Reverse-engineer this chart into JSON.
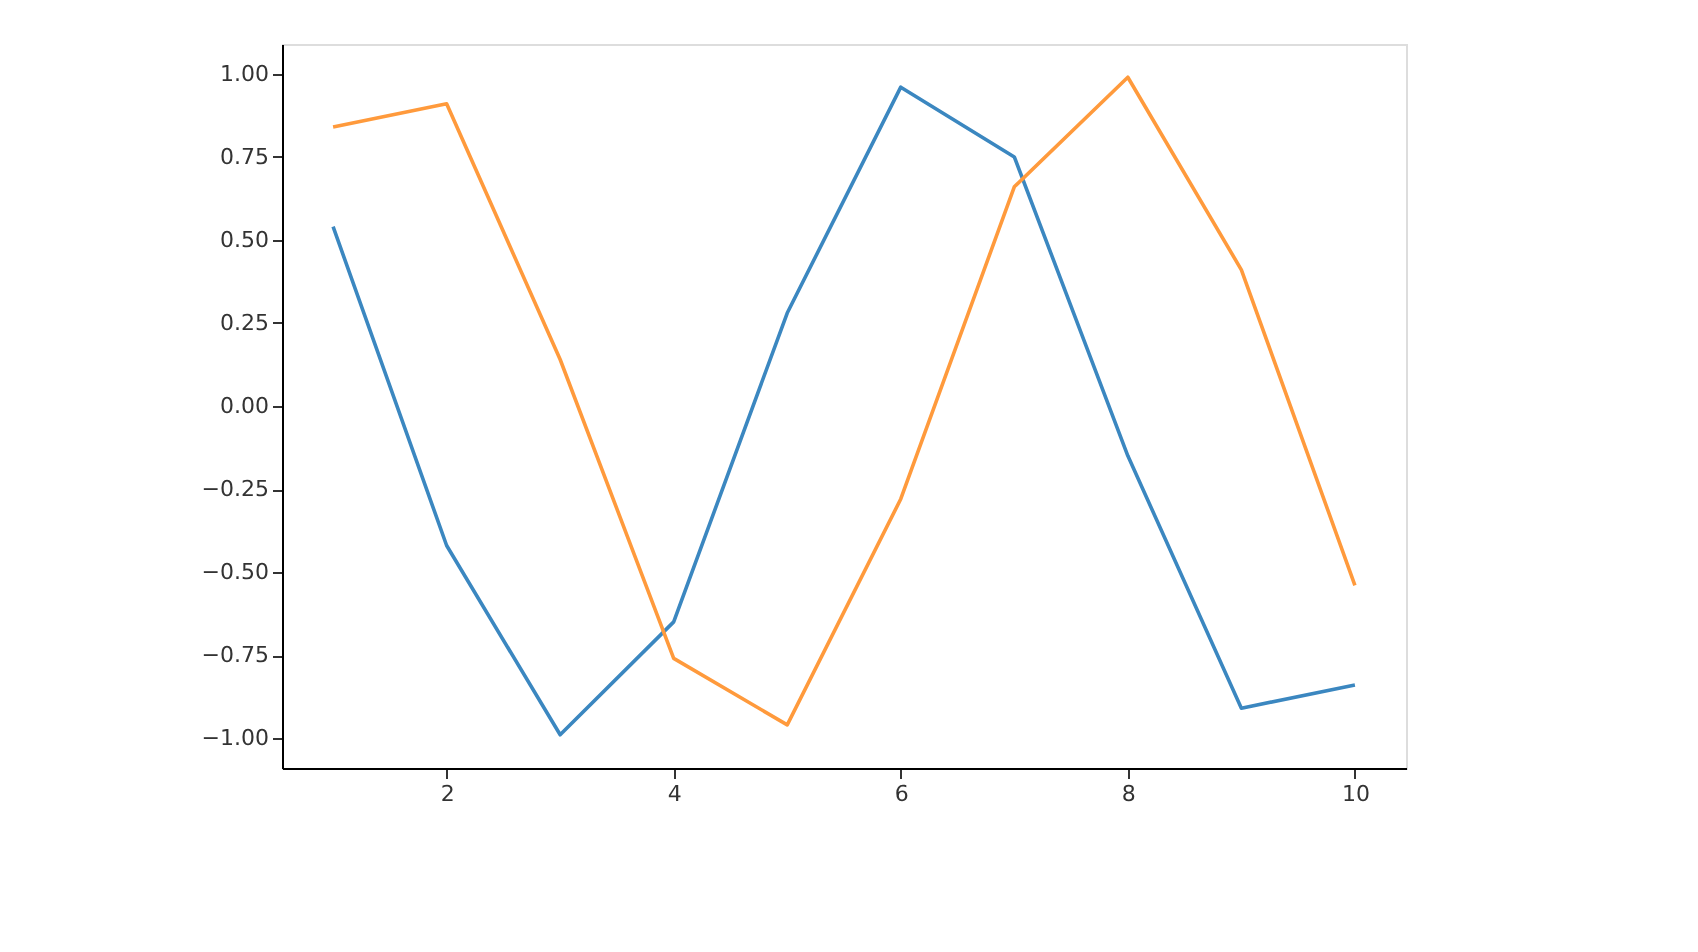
{
  "chart_data": {
    "type": "line",
    "x": [
      1,
      2,
      3,
      4,
      5,
      6,
      7,
      8,
      9,
      10
    ],
    "series": [
      {
        "color": "#3b87c0",
        "values": [
          0.54,
          -0.42,
          -0.99,
          -0.65,
          0.28,
          0.96,
          0.75,
          -0.15,
          -0.91,
          -0.84
        ]
      },
      {
        "color": "#ff9a3c",
        "values": [
          0.84,
          0.91,
          0.14,
          -0.76,
          -0.96,
          -0.28,
          0.66,
          0.99,
          0.41,
          -0.54
        ]
      }
    ],
    "xlim": [
      0.55,
      10.45
    ],
    "xticks": [
      2,
      4,
      6,
      8,
      10
    ],
    "ylim": [
      -1.09,
      1.09
    ],
    "yticks": [
      {
        "value": -1,
        "label": "−1.00"
      },
      {
        "value": -0.75,
        "label": "−0.75"
      },
      {
        "value": -0.5,
        "label": "−0.50"
      },
      {
        "value": -0.25,
        "label": "−0.25"
      },
      {
        "value": 0,
        "label": "0.00"
      },
      {
        "value": 0.25,
        "label": "0.25"
      },
      {
        "value": 0.5,
        "label": "0.50"
      },
      {
        "value": 0.75,
        "label": "0.75"
      },
      {
        "value": 1,
        "label": "1.00"
      }
    ],
    "grid": false,
    "legend": false,
    "marker": "none",
    "line_style": "solid"
  }
}
